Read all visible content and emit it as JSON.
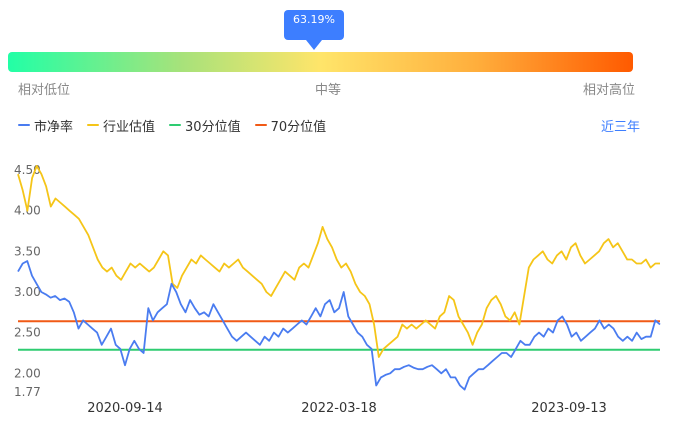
{
  "gauge": {
    "value_label": "63.19%",
    "value": 0.6319,
    "low_label": "相对低位",
    "mid_label": "中等",
    "high_label": "相对高位",
    "colors": [
      "#22ffa6",
      "#ffe56a",
      "#ff5a00"
    ]
  },
  "period_label": "近三年",
  "legend": [
    {
      "label": "市净率",
      "color": "#4a7cf0"
    },
    {
      "label": "行业估值",
      "color": "#f5c518"
    },
    {
      "label": "30分位值",
      "color": "#2ecc71"
    },
    {
      "label": "70分位值",
      "color": "#f15a16"
    }
  ],
  "chart_data": {
    "type": "line",
    "ylim": [
      1.77,
      4.5
    ],
    "yticks": [
      "4.50",
      "4.00",
      "3.50",
      "3.00",
      "2.50",
      "2.00",
      "1.77"
    ],
    "xticks": [
      "2020-09-14",
      "2022-03-18",
      "2023-09-13"
    ],
    "series": [
      {
        "name": "市净率",
        "color": "#4a7cf0",
        "values": [
          3.25,
          3.35,
          3.38,
          3.2,
          3.1,
          3.0,
          2.97,
          2.93,
          2.95,
          2.9,
          2.92,
          2.88,
          2.75,
          2.55,
          2.65,
          2.6,
          2.55,
          2.5,
          2.35,
          2.45,
          2.55,
          2.35,
          2.3,
          2.1,
          2.3,
          2.4,
          2.3,
          2.25,
          2.8,
          2.65,
          2.75,
          2.8,
          2.85,
          3.1,
          3.0,
          2.85,
          2.75,
          2.9,
          2.8,
          2.72,
          2.75,
          2.7,
          2.85,
          2.75,
          2.65,
          2.55,
          2.45,
          2.4,
          2.45,
          2.5,
          2.45,
          2.4,
          2.35,
          2.45,
          2.4,
          2.5,
          2.45,
          2.55,
          2.5,
          2.55,
          2.6,
          2.65,
          2.6,
          2.7,
          2.8,
          2.7,
          2.85,
          2.9,
          2.75,
          2.8,
          3.0,
          2.7,
          2.6,
          2.5,
          2.45,
          2.35,
          2.3,
          1.85,
          1.95,
          1.98,
          2.0,
          2.05,
          2.05,
          2.08,
          2.1,
          2.07,
          2.05,
          2.05,
          2.08,
          2.1,
          2.05,
          2.0,
          2.05,
          1.95,
          1.95,
          1.85,
          1.8,
          1.95,
          2.0,
          2.05,
          2.05,
          2.1,
          2.15,
          2.2,
          2.25,
          2.25,
          2.2,
          2.3,
          2.4,
          2.35,
          2.35,
          2.45,
          2.5,
          2.45,
          2.55,
          2.5,
          2.65,
          2.7,
          2.6,
          2.45,
          2.5,
          2.4,
          2.45,
          2.5,
          2.55,
          2.65,
          2.55,
          2.6,
          2.55,
          2.45,
          2.4,
          2.45,
          2.4,
          2.5,
          2.42,
          2.45,
          2.45,
          2.65,
          2.6
        ]
      },
      {
        "name": "行业估值",
        "color": "#f5c518",
        "values": [
          4.45,
          4.25,
          4.0,
          4.4,
          4.55,
          4.45,
          4.3,
          4.05,
          4.15,
          4.1,
          4.05,
          4.0,
          3.95,
          3.9,
          3.8,
          3.7,
          3.55,
          3.4,
          3.3,
          3.25,
          3.3,
          3.2,
          3.15,
          3.25,
          3.35,
          3.3,
          3.35,
          3.3,
          3.25,
          3.3,
          3.4,
          3.5,
          3.45,
          3.1,
          3.05,
          3.2,
          3.3,
          3.4,
          3.35,
          3.45,
          3.4,
          3.35,
          3.3,
          3.25,
          3.35,
          3.3,
          3.35,
          3.4,
          3.3,
          3.25,
          3.2,
          3.15,
          3.1,
          3.0,
          2.95,
          3.05,
          3.15,
          3.25,
          3.2,
          3.15,
          3.3,
          3.35,
          3.3,
          3.45,
          3.6,
          3.8,
          3.65,
          3.55,
          3.4,
          3.3,
          3.35,
          3.25,
          3.1,
          3.0,
          2.95,
          2.85,
          2.6,
          2.2,
          2.3,
          2.35,
          2.4,
          2.45,
          2.6,
          2.55,
          2.6,
          2.55,
          2.6,
          2.65,
          2.6,
          2.55,
          2.7,
          2.75,
          2.95,
          2.9,
          2.7,
          2.6,
          2.5,
          2.35,
          2.5,
          2.6,
          2.8,
          2.9,
          2.95,
          2.85,
          2.7,
          2.65,
          2.75,
          2.6,
          2.95,
          3.3,
          3.4,
          3.45,
          3.5,
          3.4,
          3.35,
          3.45,
          3.5,
          3.4,
          3.55,
          3.6,
          3.45,
          3.35,
          3.4,
          3.45,
          3.5,
          3.6,
          3.65,
          3.55,
          3.6,
          3.5,
          3.4,
          3.4,
          3.35,
          3.35,
          3.4,
          3.3,
          3.35,
          3.35
        ]
      },
      {
        "name": "30分位值",
        "color": "#2ecc71",
        "values": [
          2.29,
          2.29
        ]
      },
      {
        "name": "70分位值",
        "color": "#f15a16",
        "values": [
          2.64,
          2.64
        ]
      }
    ]
  }
}
